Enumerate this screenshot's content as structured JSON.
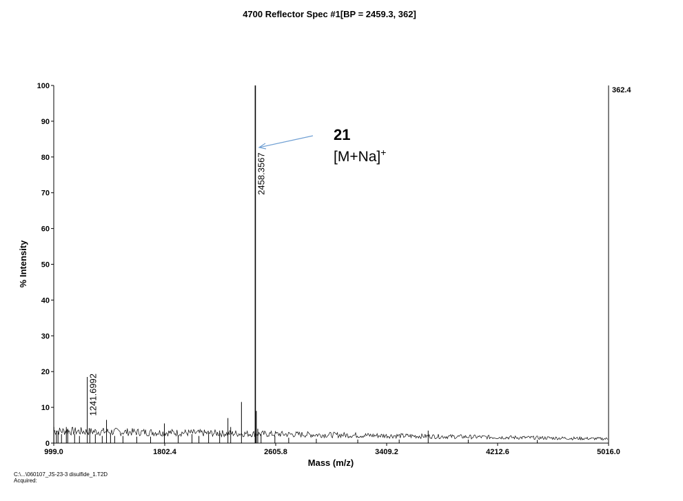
{
  "chart_data": {
    "type": "line",
    "title": "4700 Reflector Spec #1[BP = 2459.3, 362]",
    "xlabel": "Mass (m/z)",
    "ylabel": "% Intensity",
    "xlim": [
      999.0,
      5016.0
    ],
    "ylim": [
      0,
      100
    ],
    "x_ticks": [
      "999.0",
      "1802.4",
      "2605.8",
      "3409.2",
      "4212.6",
      "5016.0"
    ],
    "y_ticks": [
      "0",
      "10",
      "20",
      "30",
      "40",
      "50",
      "60",
      "70",
      "80",
      "90",
      "100"
    ],
    "max_intensity_label": "362.4",
    "grid": false,
    "legend": "none",
    "line_color": "#000000",
    "peaks": [
      {
        "x": 1000,
        "y": 4.5
      },
      {
        "x": 1018,
        "y": 3.5
      },
      {
        "x": 1030,
        "y": 3.0
      },
      {
        "x": 1055,
        "y": 2.5
      },
      {
        "x": 1090,
        "y": 4.5
      },
      {
        "x": 1100,
        "y": 4.0
      },
      {
        "x": 1150,
        "y": 2.5
      },
      {
        "x": 1185,
        "y": 2.0
      },
      {
        "x": 1241.6992,
        "y": 18.5
      },
      {
        "x": 1260,
        "y": 3.0
      },
      {
        "x": 1300,
        "y": 2.5
      },
      {
        "x": 1350,
        "y": 2.0
      },
      {
        "x": 1381,
        "y": 6.5
      },
      {
        "x": 1410,
        "y": 2.5
      },
      {
        "x": 1440,
        "y": 2.0
      },
      {
        "x": 1500,
        "y": 2.0
      },
      {
        "x": 1600,
        "y": 1.8
      },
      {
        "x": 1700,
        "y": 1.8
      },
      {
        "x": 1800,
        "y": 5.5
      },
      {
        "x": 1900,
        "y": 2.0
      },
      {
        "x": 2000,
        "y": 2.5
      },
      {
        "x": 2050,
        "y": 2.0
      },
      {
        "x": 2120,
        "y": 3.0
      },
      {
        "x": 2200,
        "y": 3.5
      },
      {
        "x": 2260,
        "y": 7.0
      },
      {
        "x": 2280,
        "y": 4.5
      },
      {
        "x": 2358,
        "y": 11.5
      },
      {
        "x": 2458.3567,
        "y": 100
      },
      {
        "x": 2466,
        "y": 9.0
      },
      {
        "x": 2476,
        "y": 4.0
      },
      {
        "x": 2500,
        "y": 2.5
      },
      {
        "x": 2600,
        "y": 2.0
      },
      {
        "x": 2700,
        "y": 1.5
      },
      {
        "x": 2900,
        "y": 1.2
      },
      {
        "x": 3200,
        "y": 1.0
      },
      {
        "x": 3500,
        "y": 1.0
      },
      {
        "x": 3710,
        "y": 3.5
      },
      {
        "x": 4000,
        "y": 1.0
      },
      {
        "x": 4500,
        "y": 0.9
      }
    ],
    "peak_labels": [
      {
        "text": "1241.6992",
        "x": 1241.6992,
        "y": 18.5
      },
      {
        "text": "2458.3567",
        "x": 2458.3567,
        "y": 100
      }
    ],
    "annotation": {
      "compound": "21",
      "ion": "[M+Na]",
      "ion_charge": "+",
      "arrow_color": "#6f9fd3",
      "points_to": {
        "x": 2458.3567,
        "y": 82
      }
    },
    "footer_path": "C:\\...\\060107_JS-23-3 disulfide_1.T2D",
    "footer_acquired": "Acquired:"
  }
}
